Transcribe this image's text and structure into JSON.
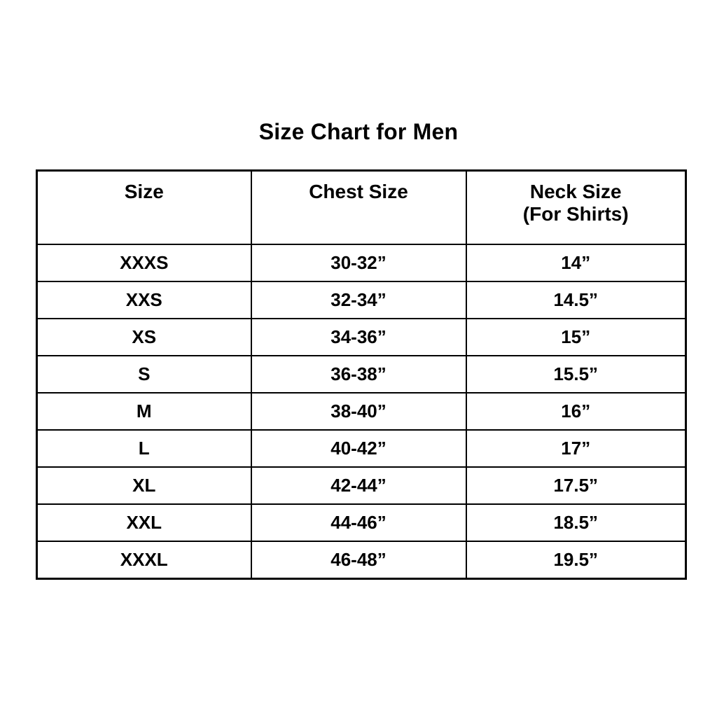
{
  "page": {
    "title": "Size Chart for Men",
    "background_color": "#ffffff",
    "text_color": "#000000",
    "border_color": "#000000"
  },
  "table": {
    "headers": {
      "size": "Size",
      "chest": "Chest Size",
      "neck_line1": "Neck Size",
      "neck_line2": "(For Shirts)"
    },
    "rows": [
      {
        "size": "XXXS",
        "chest": "30-32”",
        "neck": "14”"
      },
      {
        "size": "XXS",
        "chest": "32-34”",
        "neck": "14.5”"
      },
      {
        "size": "XS",
        "chest": "34-36”",
        "neck": "15”"
      },
      {
        "size": "S",
        "chest": "36-38”",
        "neck": "15.5”"
      },
      {
        "size": "M",
        "chest": "38-40”",
        "neck": "16”"
      },
      {
        "size": "L",
        "chest": "40-42”",
        "neck": "17”"
      },
      {
        "size": "XL",
        "chest": "42-44”",
        "neck": "17.5”"
      },
      {
        "size": "XXL",
        "chest": "44-46”",
        "neck": "18.5”"
      },
      {
        "size": "XXXL",
        "chest": "46-48”",
        "neck": "19.5”"
      }
    ]
  },
  "chart_data": {
    "type": "table",
    "title": "Size Chart for Men",
    "columns": [
      "Size",
      "Chest Size",
      "Neck Size (For Shirts)"
    ],
    "rows": [
      [
        "XXXS",
        "30-32”",
        "14”"
      ],
      [
        "XXS",
        "32-34”",
        "14.5”"
      ],
      [
        "XS",
        "34-36”",
        "15”"
      ],
      [
        "S",
        "36-38”",
        "15.5”"
      ],
      [
        "M",
        "38-40”",
        "16”"
      ],
      [
        "L",
        "40-42”",
        "17”"
      ],
      [
        "XL",
        "42-44”",
        "17.5”"
      ],
      [
        "XXL",
        "44-46”",
        "18.5”"
      ],
      [
        "XXXL",
        "46-48”",
        "19.5”"
      ]
    ]
  }
}
